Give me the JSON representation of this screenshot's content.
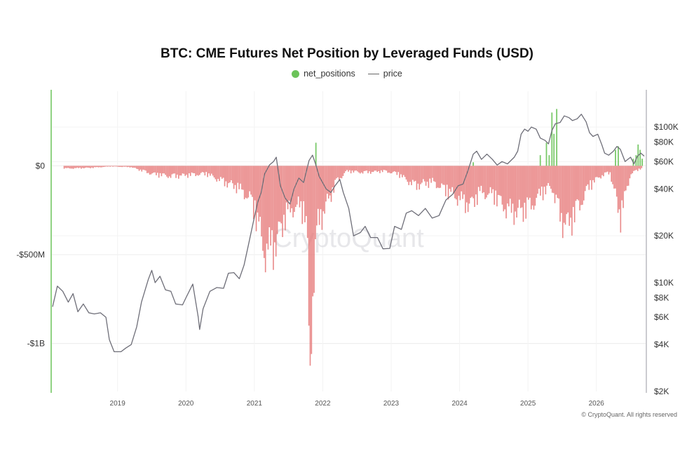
{
  "chart_data": {
    "type": "bar",
    "title": "BTC: CME Futures Net Position by Leveraged Funds (USD)",
    "legend": [
      {
        "name": "net_positions",
        "marker": "dot",
        "color": "#6cc35a"
      },
      {
        "name": "price",
        "marker": "line",
        "color": "#6e6e78"
      }
    ],
    "watermark": "CryptoQuant",
    "copyright": "© CryptoQuant. All rights reserved",
    "x_ticks": [
      "2019",
      "2020",
      "2021",
      "2022",
      "2023",
      "2024",
      "2025",
      "2026"
    ],
    "x_range": [
      2018.04,
      2026.72
    ],
    "y_left": {
      "range_usd": [
        -1270000000,
        420000000
      ],
      "ticks": [
        {
          "value": 0,
          "label": "$0"
        },
        {
          "value": -500000000,
          "label": "-$500M"
        },
        {
          "value": -1000000000,
          "label": "-$1B"
        }
      ]
    },
    "y_right": {
      "scale": "log",
      "range_usd": [
        2000,
        170000
      ],
      "ticks": [
        {
          "value": 100000,
          "label": "$100K"
        },
        {
          "value": 80000,
          "label": "$80K"
        },
        {
          "value": 60000,
          "label": "$60K"
        },
        {
          "value": 40000,
          "label": "$40K"
        },
        {
          "value": 20000,
          "label": "$20K"
        },
        {
          "value": 10000,
          "label": "$10K"
        },
        {
          "value": 8000,
          "label": "$8K"
        },
        {
          "value": 6000,
          "label": "$6K"
        },
        {
          "value": 4000,
          "label": "$4K"
        },
        {
          "value": 2000,
          "label": "$2K"
        }
      ]
    },
    "colors": {
      "negative": "#e57373",
      "positive": "#6cc35a",
      "price": "#6e6e78",
      "grid": "#ececec",
      "axis_left": "#6cc35a",
      "axis_right": "#9a9aa0"
    },
    "net_positions_keypoints": [
      [
        2018.25,
        -20000000
      ],
      [
        2018.6,
        -15000000
      ],
      [
        2018.9,
        -5000000
      ],
      [
        2019.2,
        -10000000
      ],
      [
        2019.5,
        -60000000
      ],
      [
        2019.8,
        -80000000
      ],
      [
        2020.0,
        -70000000
      ],
      [
        2020.3,
        -60000000
      ],
      [
        2020.55,
        -120000000
      ],
      [
        2020.75,
        -160000000
      ],
      [
        2020.95,
        -250000000
      ],
      [
        2021.05,
        -420000000
      ],
      [
        2021.15,
        -650000000
      ],
      [
        2021.3,
        -600000000
      ],
      [
        2021.45,
        -380000000
      ],
      [
        2021.6,
        -300000000
      ],
      [
        2021.75,
        -350000000
      ],
      [
        2021.82,
        -1170000000
      ],
      [
        2021.92,
        -450000000
      ],
      [
        2022.05,
        -300000000
      ],
      [
        2022.2,
        -120000000
      ],
      [
        2022.35,
        -40000000
      ],
      [
        2022.6,
        -50000000
      ],
      [
        2022.9,
        -40000000
      ],
      [
        2023.1,
        -60000000
      ],
      [
        2023.35,
        -150000000
      ],
      [
        2023.6,
        -120000000
      ],
      [
        2023.85,
        -200000000
      ],
      [
        2024.0,
        -250000000
      ],
      [
        2024.15,
        -300000000
      ],
      [
        2024.3,
        -200000000
      ],
      [
        2024.5,
        -220000000
      ],
      [
        2024.7,
        -330000000
      ],
      [
        2024.85,
        -350000000
      ],
      [
        2025.05,
        -300000000
      ],
      [
        2025.2,
        -200000000
      ],
      [
        2025.35,
        -160000000
      ],
      [
        2025.5,
        -420000000
      ],
      [
        2025.6,
        -440000000
      ],
      [
        2025.75,
        -300000000
      ],
      [
        2025.9,
        -150000000
      ],
      [
        2026.05,
        -80000000
      ],
      [
        2026.2,
        -50000000
      ],
      [
        2026.35,
        -390000000
      ],
      [
        2026.5,
        -60000000
      ],
      [
        2026.65,
        -20000000
      ]
    ],
    "net_positions_positive": [
      [
        2021.9,
        130000000
      ],
      [
        2024.2,
        20000000
      ],
      [
        2025.18,
        60000000
      ],
      [
        2025.27,
        130000000
      ],
      [
        2025.31,
        60000000
      ],
      [
        2025.35,
        300000000
      ],
      [
        2025.38,
        180000000
      ],
      [
        2025.42,
        320000000
      ],
      [
        2026.28,
        90000000
      ],
      [
        2026.32,
        110000000
      ],
      [
        2026.54,
        40000000
      ],
      [
        2026.58,
        60000000
      ],
      [
        2026.61,
        120000000
      ],
      [
        2026.64,
        90000000
      ],
      [
        2026.67,
        40000000
      ]
    ],
    "price_series": [
      [
        2018.05,
        7000
      ],
      [
        2018.12,
        9500
      ],
      [
        2018.2,
        8800
      ],
      [
        2018.28,
        7500
      ],
      [
        2018.35,
        8500
      ],
      [
        2018.42,
        6500
      ],
      [
        2018.5,
        7300
      ],
      [
        2018.58,
        6400
      ],
      [
        2018.66,
        6300
      ],
      [
        2018.75,
        6400
      ],
      [
        2018.83,
        6000
      ],
      [
        2018.88,
        4300
      ],
      [
        2018.95,
        3600
      ],
      [
        2019.05,
        3600
      ],
      [
        2019.12,
        3800
      ],
      [
        2019.2,
        4000
      ],
      [
        2019.28,
        5200
      ],
      [
        2019.35,
        7500
      ],
      [
        2019.45,
        10500
      ],
      [
        2019.5,
        12000
      ],
      [
        2019.55,
        10000
      ],
      [
        2019.62,
        11000
      ],
      [
        2019.7,
        9000
      ],
      [
        2019.78,
        8800
      ],
      [
        2019.85,
        7300
      ],
      [
        2019.95,
        7200
      ],
      [
        2020.0,
        8000
      ],
      [
        2020.1,
        9800
      ],
      [
        2020.18,
        6000
      ],
      [
        2020.2,
        5000
      ],
      [
        2020.25,
        6800
      ],
      [
        2020.35,
        8800
      ],
      [
        2020.45,
        9300
      ],
      [
        2020.55,
        9200
      ],
      [
        2020.62,
        11500
      ],
      [
        2020.7,
        11600
      ],
      [
        2020.78,
        10600
      ],
      [
        2020.85,
        13000
      ],
      [
        2020.92,
        18000
      ],
      [
        2020.98,
        24000
      ],
      [
        2021.05,
        33000
      ],
      [
        2021.1,
        38000
      ],
      [
        2021.15,
        50000
      ],
      [
        2021.22,
        57000
      ],
      [
        2021.28,
        60000
      ],
      [
        2021.32,
        64000
      ],
      [
        2021.38,
        42000
      ],
      [
        2021.45,
        35000
      ],
      [
        2021.52,
        32000
      ],
      [
        2021.58,
        40000
      ],
      [
        2021.65,
        47000
      ],
      [
        2021.72,
        44000
      ],
      [
        2021.8,
        61000
      ],
      [
        2021.85,
        66000
      ],
      [
        2021.9,
        57000
      ],
      [
        2021.95,
        48000
      ],
      [
        2022.05,
        40000
      ],
      [
        2022.12,
        38000
      ],
      [
        2022.18,
        42000
      ],
      [
        2022.25,
        46000
      ],
      [
        2022.3,
        38000
      ],
      [
        2022.38,
        30000
      ],
      [
        2022.45,
        20000
      ],
      [
        2022.55,
        21000
      ],
      [
        2022.62,
        23000
      ],
      [
        2022.7,
        19500
      ],
      [
        2022.8,
        19500
      ],
      [
        2022.88,
        16500
      ],
      [
        2022.98,
        16600
      ],
      [
        2023.05,
        23000
      ],
      [
        2023.15,
        22000
      ],
      [
        2023.22,
        28000
      ],
      [
        2023.3,
        29000
      ],
      [
        2023.4,
        27000
      ],
      [
        2023.5,
        30000
      ],
      [
        2023.6,
        26000
      ],
      [
        2023.7,
        27000
      ],
      [
        2023.8,
        34000
      ],
      [
        2023.9,
        37000
      ],
      [
        2023.98,
        42000
      ],
      [
        2024.05,
        43000
      ],
      [
        2024.12,
        52000
      ],
      [
        2024.2,
        67000
      ],
      [
        2024.25,
        70000
      ],
      [
        2024.32,
        62000
      ],
      [
        2024.4,
        67000
      ],
      [
        2024.48,
        62000
      ],
      [
        2024.55,
        57000
      ],
      [
        2024.62,
        60000
      ],
      [
        2024.7,
        58000
      ],
      [
        2024.8,
        64000
      ],
      [
        2024.85,
        70000
      ],
      [
        2024.9,
        90000
      ],
      [
        2024.95,
        97000
      ],
      [
        2025.0,
        94000
      ],
      [
        2025.05,
        100000
      ],
      [
        2025.12,
        97000
      ],
      [
        2025.18,
        85000
      ],
      [
        2025.25,
        82000
      ],
      [
        2025.3,
        78000
      ],
      [
        2025.35,
        95000
      ],
      [
        2025.4,
        105000
      ],
      [
        2025.47,
        107000
      ],
      [
        2025.53,
        118000
      ],
      [
        2025.6,
        115000
      ],
      [
        2025.65,
        110000
      ],
      [
        2025.72,
        113000
      ],
      [
        2025.78,
        121000
      ],
      [
        2025.85,
        108000
      ],
      [
        2025.9,
        92000
      ],
      [
        2025.95,
        87000
      ],
      [
        2026.02,
        90000
      ],
      [
        2026.08,
        77000
      ],
      [
        2026.12,
        68000
      ],
      [
        2026.18,
        66000
      ],
      [
        2026.25,
        70000
      ],
      [
        2026.3,
        75000
      ],
      [
        2026.35,
        72000
      ],
      [
        2026.42,
        60000
      ],
      [
        2026.5,
        64000
      ],
      [
        2026.55,
        58000
      ],
      [
        2026.6,
        65000
      ],
      [
        2026.65,
        68000
      ],
      [
        2026.7,
        65000
      ]
    ]
  }
}
